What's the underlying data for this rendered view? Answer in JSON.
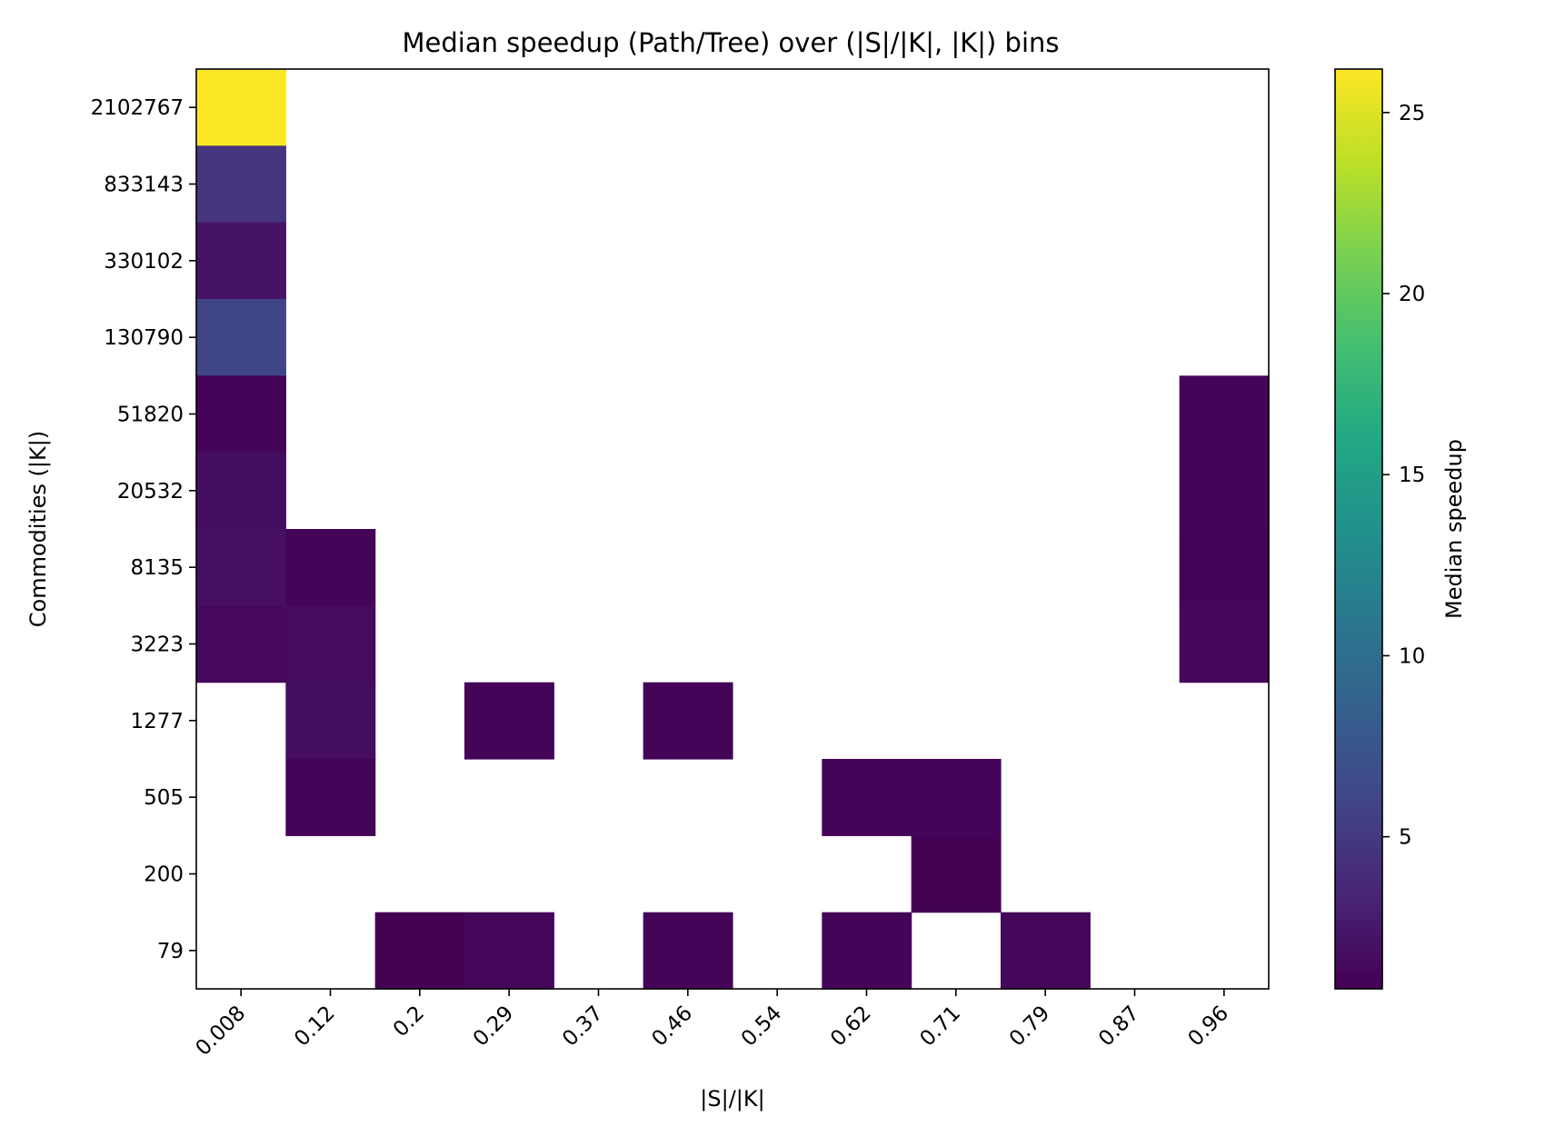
{
  "chart_data": {
    "type": "heatmap",
    "title": "Median speedup (Path/Tree) over (|S|/|K|, |K|) bins",
    "xlabel": "|S|/|K|",
    "ylabel": "Commodities (|K|)",
    "x_categories": [
      "0.008",
      "0.12",
      "0.2",
      "0.29",
      "0.37",
      "0.46",
      "0.54",
      "0.62",
      "0.71",
      "0.79",
      "0.87",
      "0.96"
    ],
    "y_categories": [
      "2102767",
      "833143",
      "330102",
      "130790",
      "51820",
      "20532",
      "8135",
      "3223",
      "1277",
      "505",
      "200",
      "79"
    ],
    "values": [
      [
        26.1,
        null,
        null,
        null,
        null,
        null,
        null,
        null,
        null,
        null,
        null,
        null
      ],
      [
        4.6,
        null,
        null,
        null,
        null,
        null,
        null,
        null,
        null,
        null,
        null,
        null
      ],
      [
        2.0,
        null,
        null,
        null,
        null,
        null,
        null,
        null,
        null,
        null,
        null,
        null
      ],
      [
        6.0,
        null,
        null,
        null,
        null,
        null,
        null,
        null,
        null,
        null,
        null,
        null
      ],
      [
        1.0,
        null,
        null,
        null,
        null,
        null,
        null,
        null,
        null,
        null,
        null,
        1.1
      ],
      [
        1.7,
        null,
        null,
        null,
        null,
        null,
        null,
        null,
        null,
        null,
        null,
        1.1
      ],
      [
        1.8,
        1.0,
        null,
        null,
        null,
        null,
        null,
        null,
        null,
        null,
        null,
        1.0
      ],
      [
        1.3,
        1.5,
        null,
        null,
        null,
        null,
        null,
        null,
        null,
        null,
        null,
        1.2
      ],
      [
        null,
        1.7,
        null,
        1.0,
        null,
        1.1,
        null,
        null,
        null,
        null,
        null,
        null
      ],
      [
        null,
        1.0,
        null,
        null,
        null,
        null,
        null,
        1.1,
        1.0,
        null,
        null,
        null
      ],
      [
        null,
        null,
        null,
        null,
        null,
        null,
        null,
        null,
        0.9,
        null,
        null,
        null
      ],
      [
        null,
        null,
        0.9,
        1.2,
        null,
        1.1,
        null,
        1.1,
        null,
        1.2,
        null,
        null
      ]
    ],
    "colormap": "viridis",
    "vmin": 0.8,
    "vmax": 26.2,
    "colorbar": {
      "label": "Median speedup",
      "ticks": [
        5,
        10,
        15,
        20,
        25
      ],
      "tick_labels": [
        "5",
        "10",
        "15",
        "20",
        "25"
      ]
    },
    "grid": false
  }
}
